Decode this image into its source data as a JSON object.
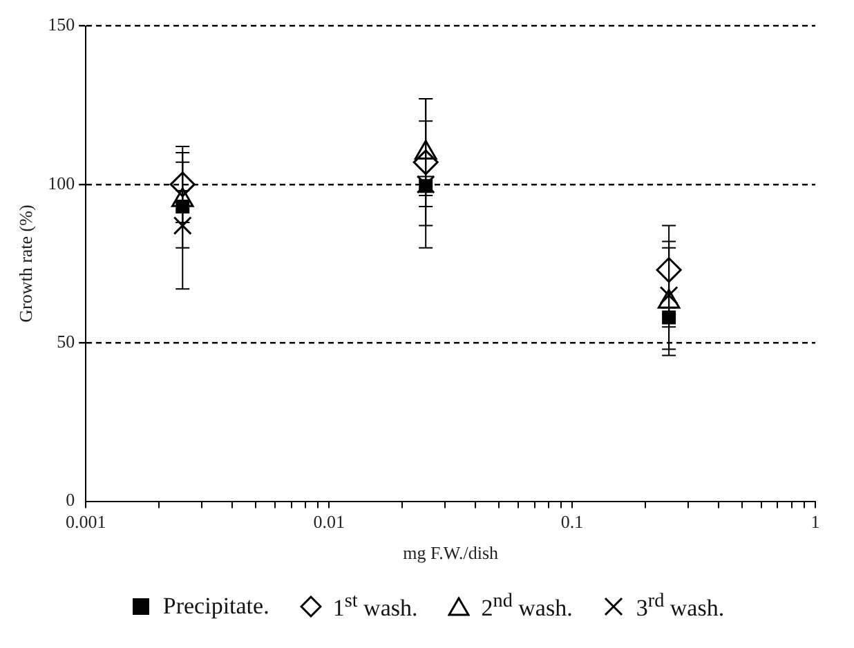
{
  "chart_data": {
    "type": "scatter",
    "xlabel": "mg F.W./dish",
    "ylabel": "Growth rate (%)",
    "log": "x",
    "xlim": [
      0.001,
      1
    ],
    "xticks": [
      0.001,
      {
        "value": 0.002,
        "label": null
      },
      {
        "value": 0.003,
        "label": null
      },
      {
        "value": 0.004,
        "label": null
      },
      {
        "value": 0.005,
        "label": null
      },
      {
        "value": 0.006,
        "label": null
      },
      {
        "value": 0.007,
        "label": null
      },
      {
        "value": 0.008,
        "label": null
      },
      {
        "value": 0.009,
        "label": null
      },
      0.01,
      {
        "value": 0.02,
        "label": null
      },
      {
        "value": 0.03,
        "label": null
      },
      {
        "value": 0.04,
        "label": null
      },
      {
        "value": 0.05,
        "label": null
      },
      {
        "value": 0.06,
        "label": null
      },
      {
        "value": 0.07,
        "label": null
      },
      {
        "value": 0.08,
        "label": null
      },
      {
        "value": 0.09,
        "label": null
      },
      0.1,
      {
        "value": 0.2,
        "label": null
      },
      {
        "value": 0.3,
        "label": null
      },
      {
        "value": 0.4,
        "label": null
      },
      {
        "value": 0.5,
        "label": null
      },
      {
        "value": 0.6,
        "label": null
      },
      {
        "value": 0.7,
        "label": null
      },
      {
        "value": 0.8,
        "label": null
      },
      {
        "value": 0.9,
        "label": null
      },
      1
    ],
    "ylim": [
      0,
      150
    ],
    "yticks": [
      0,
      50,
      100,
      150
    ],
    "grid": "y",
    "line_style": "dashed",
    "legend": "bottom",
    "x": [
      0.0025,
      0.025,
      0.25
    ],
    "series": [
      {
        "name": "Precipitate.",
        "color": "#000000",
        "marker": "square",
        "values": [
          93,
          99.5,
          58
        ],
        "errors": [
          5,
          3,
          3
        ]
      },
      {
        "name": "1$^{st}$ wash.",
        "color": "#000000",
        "marker": "diamond",
        "values": [
          100,
          107,
          73
        ],
        "errors": [
          12,
          20,
          14
        ]
      },
      {
        "name": "2$^{nd}$ wash.",
        "color": "#000000",
        "marker": "triangle",
        "values": [
          95,
          110,
          63
        ],
        "errors": [
          15,
          17,
          17
        ]
      },
      {
        "name": "3$^{rd}$ wash.",
        "color": "#000000",
        "marker": "cross",
        "values": [
          87,
          100,
          65
        ],
        "errors": [
          20,
          20,
          17
        ]
      }
    ]
  }
}
